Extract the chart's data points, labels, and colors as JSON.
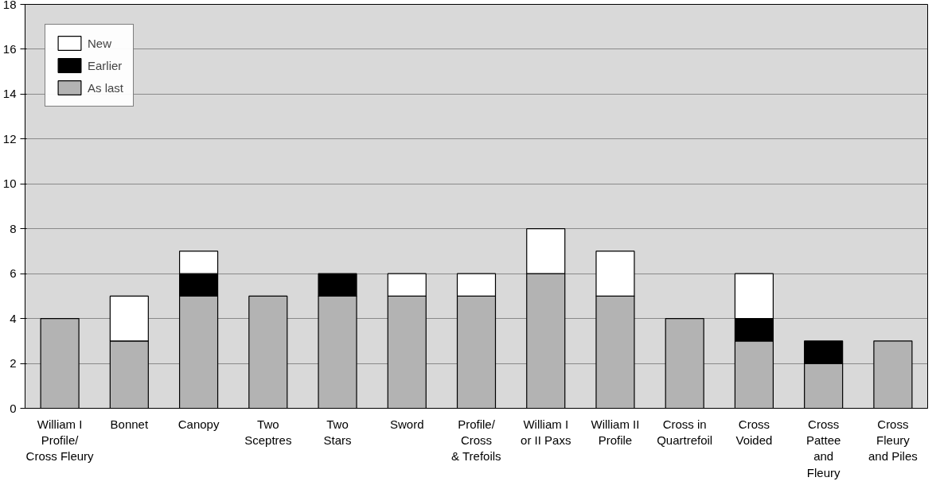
{
  "chart_data": {
    "type": "bar",
    "stacked": true,
    "categories": [
      "William I\nProfile/\nCross Fleury",
      "Bonnet",
      "Canopy",
      "Two\nSceptres",
      "Two\nStars",
      "Sword",
      "Profile/\nCross\n& Trefoils",
      "William I\nor II Paxs",
      "William II\nProfile",
      "Cross in\nQuartrefoil",
      "Cross\nVoided",
      "Cross\nPattee\nand\nFleury",
      "Cross\nFleury\nand Piles"
    ],
    "series": [
      {
        "name": "As last",
        "color": "#b3b3b3",
        "values": [
          4,
          3,
          5,
          5,
          5,
          5,
          5,
          6,
          5,
          4,
          3,
          2,
          3
        ]
      },
      {
        "name": "Earlier",
        "color": "#000000",
        "values": [
          null,
          null,
          1,
          null,
          1,
          null,
          null,
          null,
          null,
          null,
          1,
          1,
          null
        ]
      },
      {
        "name": "New",
        "color": "#ffffff",
        "values": [
          null,
          2,
          1,
          null,
          null,
          1,
          1,
          2,
          2,
          null,
          2,
          null,
          null
        ]
      }
    ],
    "ylim": [
      0,
      18
    ],
    "yticks": [
      0,
      2,
      4,
      6,
      8,
      10,
      12,
      14,
      16,
      18
    ],
    "grid": "y",
    "legend": "top left"
  }
}
